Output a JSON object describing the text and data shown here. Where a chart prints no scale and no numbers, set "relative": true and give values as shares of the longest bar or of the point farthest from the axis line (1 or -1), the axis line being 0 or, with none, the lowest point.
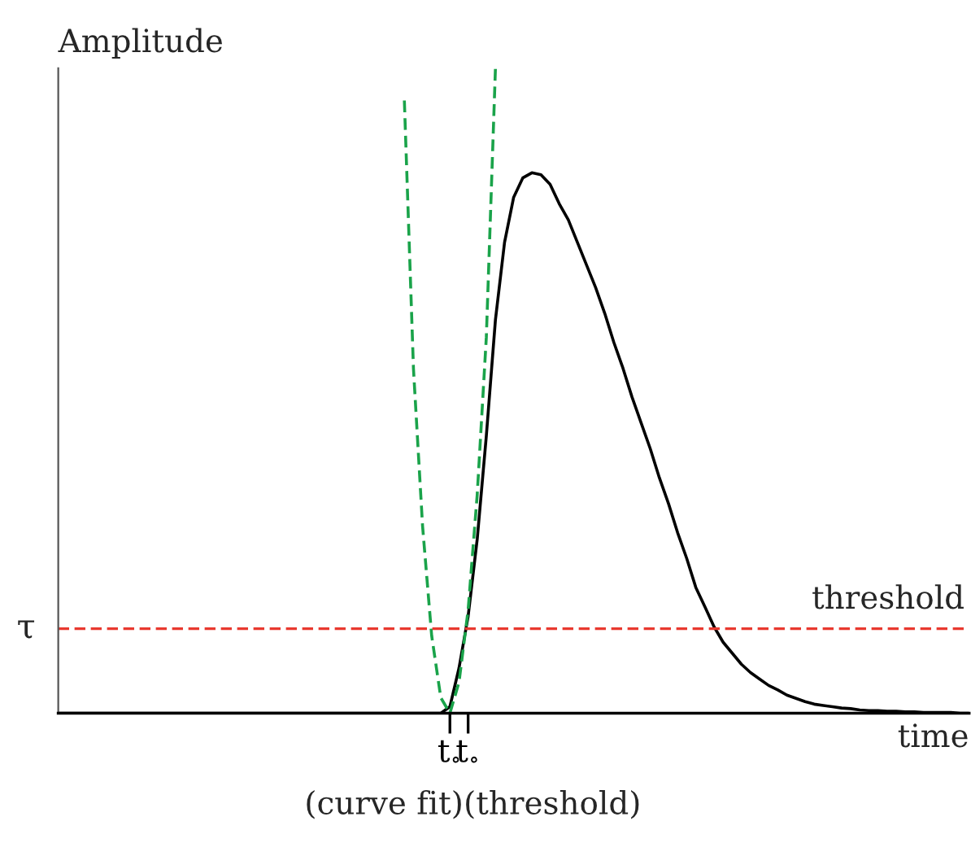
{
  "chart_data": {
    "type": "line",
    "relative": true,
    "ylabel": "Amplitude",
    "xlabel": "time",
    "categories": [
      null,
      null,
      null,
      null,
      null,
      null,
      null,
      null,
      null,
      null,
      null,
      null,
      null,
      null,
      null,
      null,
      null,
      null,
      null,
      null,
      null,
      null,
      null,
      null,
      null,
      null,
      null,
      null,
      null,
      null,
      null,
      null,
      null,
      null,
      null,
      null,
      null,
      null,
      null,
      null,
      null,
      null,
      null,
      "t$_{∘}$",
      null,
      "t$_{∘}$",
      null,
      null,
      null,
      null,
      null,
      null,
      null,
      null,
      null,
      null,
      null,
      null,
      null,
      null,
      null,
      null,
      null,
      null,
      null,
      null,
      null,
      null,
      null,
      null,
      null,
      null,
      null,
      null,
      null,
      null,
      null,
      null,
      null,
      null,
      null,
      null,
      null,
      null,
      null,
      null,
      null,
      null,
      null,
      null,
      null,
      null,
      null,
      null,
      null,
      null,
      null,
      null,
      null,
      null,
      null
    ],
    "grid": false,
    "legend": false,
    "series": [
      {
        "color": "#000000",
        "line_style": "solid",
        "values": [
          0,
          0,
          0,
          0,
          0,
          0,
          0,
          0,
          0,
          0,
          0,
          0,
          0,
          0,
          0,
          0,
          0,
          0,
          0,
          0,
          0,
          0,
          0,
          0,
          0,
          0,
          0,
          0,
          0,
          0,
          0,
          0,
          0,
          0,
          0,
          0,
          0,
          0,
          0,
          0,
          0,
          0,
          0,
          0.01,
          0.07,
          0.15,
          0.27,
          0.43,
          0.61,
          0.73,
          0.8,
          0.83,
          0.838,
          0.835,
          0.82,
          0.79,
          0.765,
          0.73,
          0.695,
          0.66,
          0.62,
          0.575,
          0.535,
          0.49,
          0.45,
          0.41,
          0.365,
          0.325,
          0.28,
          0.24,
          0.195,
          0.165,
          0.134,
          0.11,
          0.093,
          0.076,
          0.063,
          0.053,
          0.043,
          0.036,
          0.028,
          0.023,
          0.018,
          0.014,
          0.012,
          0.01,
          0.008,
          0.007,
          0.005,
          0.004,
          0.004,
          0.003,
          0.003,
          0.002,
          0.002,
          0.001,
          0.001,
          0.001,
          0.001,
          0,
          0
        ]
      },
      {
        "color": "#1aa34a",
        "line_style": "dashed",
        "values": [
          null,
          null,
          null,
          null,
          null,
          null,
          null,
          null,
          null,
          null,
          null,
          null,
          null,
          null,
          null,
          null,
          null,
          null,
          null,
          null,
          null,
          null,
          null,
          null,
          null,
          null,
          null,
          null,
          null,
          null,
          null,
          null,
          null,
          null,
          null,
          null,
          null,
          null,
          0.95,
          0.534,
          0.29,
          0.12,
          0.024,
          0,
          0.048,
          0.16,
          0.339,
          0.583,
          1.0,
          null,
          null,
          null,
          null,
          null,
          null,
          null,
          null,
          null,
          null,
          null,
          null,
          null,
          null,
          null,
          null,
          null,
          null,
          null,
          null,
          null,
          null,
          null,
          null,
          null,
          null,
          null,
          null,
          null,
          null,
          null,
          null,
          null,
          null,
          null,
          null,
          null,
          null,
          null,
          null,
          null,
          null,
          null,
          null,
          null,
          null,
          null,
          null,
          null,
          null,
          null,
          null
        ]
      }
    ],
    "ref_lines": [
      {
        "axis": "y",
        "value": 0.131,
        "label": "τ",
        "color": "#e8392f",
        "line_style": "dashed"
      }
    ],
    "annotations": [
      {
        "text": "threshold",
        "y": 0.131
      },
      "(curve fit)",
      "(threshold)"
    ]
  }
}
